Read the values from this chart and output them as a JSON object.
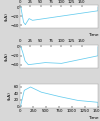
{
  "bg_color": "#d8d8d8",
  "plot_bg": "#ffffff",
  "line_color": "#66ccee",
  "top": {
    "xlabel": "Time (µs)",
    "ylabel": "(kA)",
    "xlim": [
      0,
      190
    ],
    "ylim": [
      -47,
      5
    ],
    "yticks": [
      0,
      -20,
      -40
    ],
    "xticks": [
      0,
      25,
      50,
      75,
      100,
      125,
      150
    ],
    "xtick_labels": [
      "0",
      "25",
      "50",
      "75",
      "100",
      "125",
      "150"
    ]
  },
  "mid": {
    "xlabel": "Time (µs)",
    "ylabel": "(kA)",
    "xlim": [
      0,
      190
    ],
    "ylim": [
      -47,
      5
    ],
    "yticks": [
      0,
      -20,
      -40
    ],
    "xticks": [
      0,
      25,
      50,
      75,
      100,
      125,
      150
    ],
    "xtick_labels": [
      "0",
      "25",
      "50",
      "75",
      "100",
      "125",
      "150"
    ]
  },
  "bot": {
    "xlabel": "Time (µs)",
    "ylabel": "(kA)",
    "xlim": [
      0,
      1500
    ],
    "ylim": [
      -5,
      68
    ],
    "yticks": [
      0,
      20,
      40,
      60
    ],
    "xticks": [
      0,
      250,
      500,
      750,
      1000,
      1250,
      1500
    ],
    "xtick_labels": [
      "0",
      "250",
      "500",
      "750",
      "1,000",
      "1,250",
      "1,500"
    ]
  }
}
